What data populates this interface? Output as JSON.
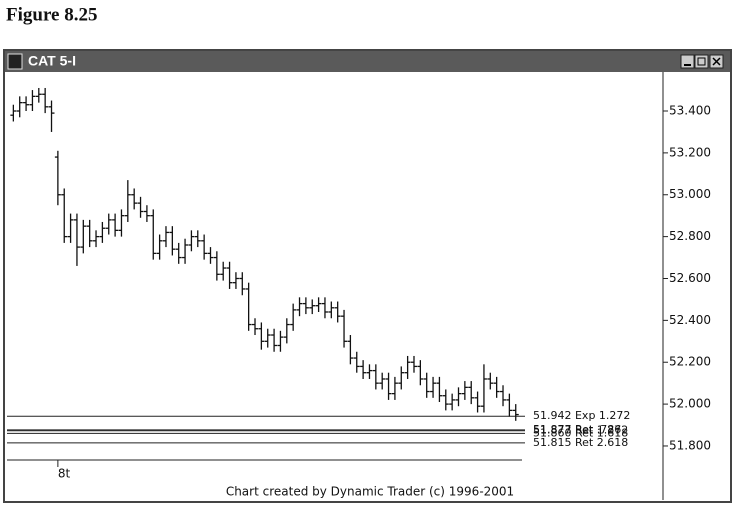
{
  "figure_label": "Figure 8.25",
  "chart_data": {
    "type": "ohlc",
    "title": "CAT 5-I",
    "footer": "Chart created by Dynamic Trader (c) 1996-2001",
    "color": "#111111",
    "xlim": [
      -1,
      102
    ],
    "xticks": [
      {
        "value": 7,
        "label": "8t"
      }
    ],
    "ylim": [
      51.733,
      53.572
    ],
    "yticks": [
      {
        "value": 51.8,
        "label": "51.800"
      },
      {
        "value": 52.0,
        "label": "52.000"
      },
      {
        "value": 52.2,
        "label": "52.200"
      },
      {
        "value": 52.4,
        "label": "52.400"
      },
      {
        "value": 52.6,
        "label": "52.600"
      },
      {
        "value": 52.8,
        "label": "52.800"
      },
      {
        "value": 53.0,
        "label": "53.000"
      },
      {
        "value": 53.2,
        "label": "53.200"
      },
      {
        "value": 53.4,
        "label": "53.400"
      }
    ],
    "open": [
      53.38,
      53.4,
      53.44,
      53.43,
      53.47,
      53.48,
      53.42,
      53.18,
      53.0,
      52.8,
      52.88,
      52.75,
      52.85,
      52.78,
      52.8,
      52.84,
      52.88,
      52.83,
      52.9,
      53.0,
      52.96,
      52.92,
      52.9,
      52.72,
      52.78,
      52.82,
      52.74,
      52.7,
      52.76,
      52.8,
      52.78,
      52.72,
      52.7,
      52.62,
      52.65,
      52.58,
      52.6,
      52.55,
      52.38,
      52.36,
      52.3,
      52.33,
      52.28,
      52.32,
      52.38,
      52.45,
      52.48,
      52.46,
      52.47,
      52.48,
      52.44,
      52.46,
      52.42,
      52.3,
      52.22,
      52.18,
      52.15,
      52.16,
      52.1,
      52.12,
      52.05,
      52.1,
      52.15,
      52.2,
      52.18,
      52.12,
      52.06,
      52.1,
      52.04,
      52.0,
      52.02,
      52.05,
      52.08,
      52.03,
      51.99,
      52.12,
      52.1,
      52.06,
      52.02,
      51.97
    ],
    "high": [
      53.43,
      53.47,
      53.47,
      53.5,
      53.51,
      53.51,
      53.45,
      53.21,
      53.03,
      52.91,
      52.91,
      52.88,
      52.88,
      52.83,
      52.87,
      52.91,
      52.91,
      52.93,
      53.07,
      53.03,
      52.99,
      52.95,
      52.93,
      52.81,
      52.85,
      52.85,
      52.77,
      52.79,
      52.83,
      52.83,
      52.81,
      52.75,
      52.73,
      52.68,
      52.68,
      52.63,
      52.63,
      52.58,
      52.41,
      52.39,
      52.36,
      52.36,
      52.35,
      52.41,
      52.48,
      52.51,
      52.51,
      52.5,
      52.51,
      52.51,
      52.49,
      52.49,
      52.45,
      52.33,
      52.25,
      52.21,
      52.19,
      52.19,
      52.15,
      52.15,
      52.13,
      52.18,
      52.23,
      52.23,
      52.21,
      52.15,
      52.13,
      52.13,
      52.07,
      52.05,
      52.08,
      52.11,
      52.11,
      52.06,
      52.19,
      52.15,
      52.13,
      52.09,
      52.05,
      52.0
    ],
    "low": [
      53.35,
      53.37,
      53.4,
      53.4,
      53.44,
      53.39,
      53.3,
      52.95,
      52.77,
      52.77,
      52.66,
      52.72,
      52.75,
      52.75,
      52.77,
      52.81,
      52.8,
      52.8,
      52.87,
      52.93,
      52.89,
      52.87,
      52.69,
      52.69,
      52.75,
      52.71,
      52.67,
      52.67,
      52.73,
      52.75,
      52.69,
      52.67,
      52.59,
      52.59,
      52.55,
      52.55,
      52.52,
      52.35,
      52.33,
      52.26,
      52.27,
      52.25,
      52.25,
      52.29,
      52.35,
      52.42,
      52.43,
      52.43,
      52.44,
      52.41,
      52.41,
      52.39,
      52.27,
      52.19,
      52.15,
      52.12,
      52.12,
      52.07,
      52.07,
      52.02,
      52.02,
      52.07,
      52.12,
      52.15,
      52.09,
      52.03,
      52.03,
      52.01,
      51.97,
      51.97,
      51.99,
      52.02,
      52.0,
      51.96,
      51.96,
      52.07,
      52.03,
      51.99,
      51.94,
      51.92
    ],
    "close": [
      53.4,
      53.44,
      53.43,
      53.47,
      53.48,
      53.42,
      53.39,
      53.0,
      52.8,
      52.88,
      52.75,
      52.85,
      52.78,
      52.8,
      52.84,
      52.88,
      52.83,
      52.9,
      53.0,
      52.96,
      52.92,
      52.9,
      52.72,
      52.78,
      52.82,
      52.74,
      52.7,
      52.76,
      52.8,
      52.78,
      52.72,
      52.7,
      52.62,
      52.65,
      52.58,
      52.6,
      52.55,
      52.38,
      52.36,
      52.3,
      52.33,
      52.28,
      52.32,
      52.38,
      52.45,
      52.48,
      52.46,
      52.47,
      52.48,
      52.44,
      52.46,
      52.42,
      52.3,
      52.22,
      52.18,
      52.15,
      52.16,
      52.1,
      52.12,
      52.05,
      52.1,
      52.15,
      52.2,
      52.18,
      52.12,
      52.06,
      52.1,
      52.04,
      52.0,
      52.02,
      52.05,
      52.08,
      52.03,
      51.99,
      52.12,
      52.1,
      52.06,
      52.02,
      51.97,
      51.95
    ],
    "levels": [
      {
        "value": 51.942,
        "label": "51.942 Exp 1.272"
      },
      {
        "value": 51.877,
        "label": "51.877 Ret .786"
      },
      {
        "value": 51.873,
        "label": "51.873 Ret 1.272"
      },
      {
        "value": 51.86,
        "label": "51.860 Ret 1.618"
      },
      {
        "value": 51.815,
        "label": "51.815 Ret 2.618"
      }
    ]
  }
}
